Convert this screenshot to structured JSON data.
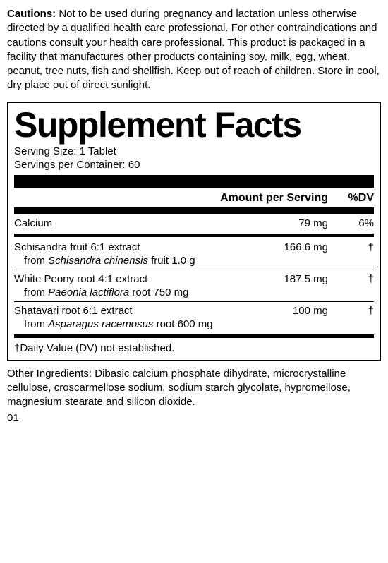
{
  "cautions": {
    "label": "Cautions:",
    "text": "Not to be used during pregnancy and lactation unless otherwise directed by a qualified health care professional. For other contraindications and cautions consult your health care professional. This product is packaged in a facility that manufactures other products containing soy, milk, egg, wheat, peanut, tree nuts, fish and shellfish. Keep out of reach of children. Store in cool, dry place out of direct sunlight."
  },
  "facts": {
    "title": "Supplement Facts",
    "serving_size": "Serving Size: 1 Tablet",
    "servings_per_container": "Servings per Container: 60",
    "header_amount": "Amount per Serving",
    "header_dv": "%DV",
    "calcium": {
      "name": "Calcium",
      "amount": "79 mg",
      "dv": "6%"
    },
    "ingredients": [
      {
        "name": "Schisandra fruit 6:1 extract",
        "amount": "166.6 mg",
        "dv": "†",
        "from_prefix": "from ",
        "from_italic": "Schisandra chinensis",
        "from_suffix": " fruit 1.0 g"
      },
      {
        "name": "White Peony root 4:1 extract",
        "amount": "187.5 mg",
        "dv": "†",
        "from_prefix": "from ",
        "from_italic": "Paeonia lactiflora",
        "from_suffix": " root 750 mg"
      },
      {
        "name": "Shatavari root 6:1 extract",
        "amount": "100 mg",
        "dv": "†",
        "from_prefix": "from ",
        "from_italic": "Asparagus racemosus",
        "from_suffix": " root 600 mg"
      }
    ],
    "footnote": "†Daily Value (DV) not established."
  },
  "other_ingredients": "Other Ingredients: Dibasic calcium phosphate dihydrate, microcrystalline cellulose, croscarmellose sodium, sodium starch glycolate, hypromellose, magnesium stearate and silicon dioxide.",
  "code": "01",
  "style": {
    "border_color": "#000000",
    "background": "#ffffff"
  }
}
